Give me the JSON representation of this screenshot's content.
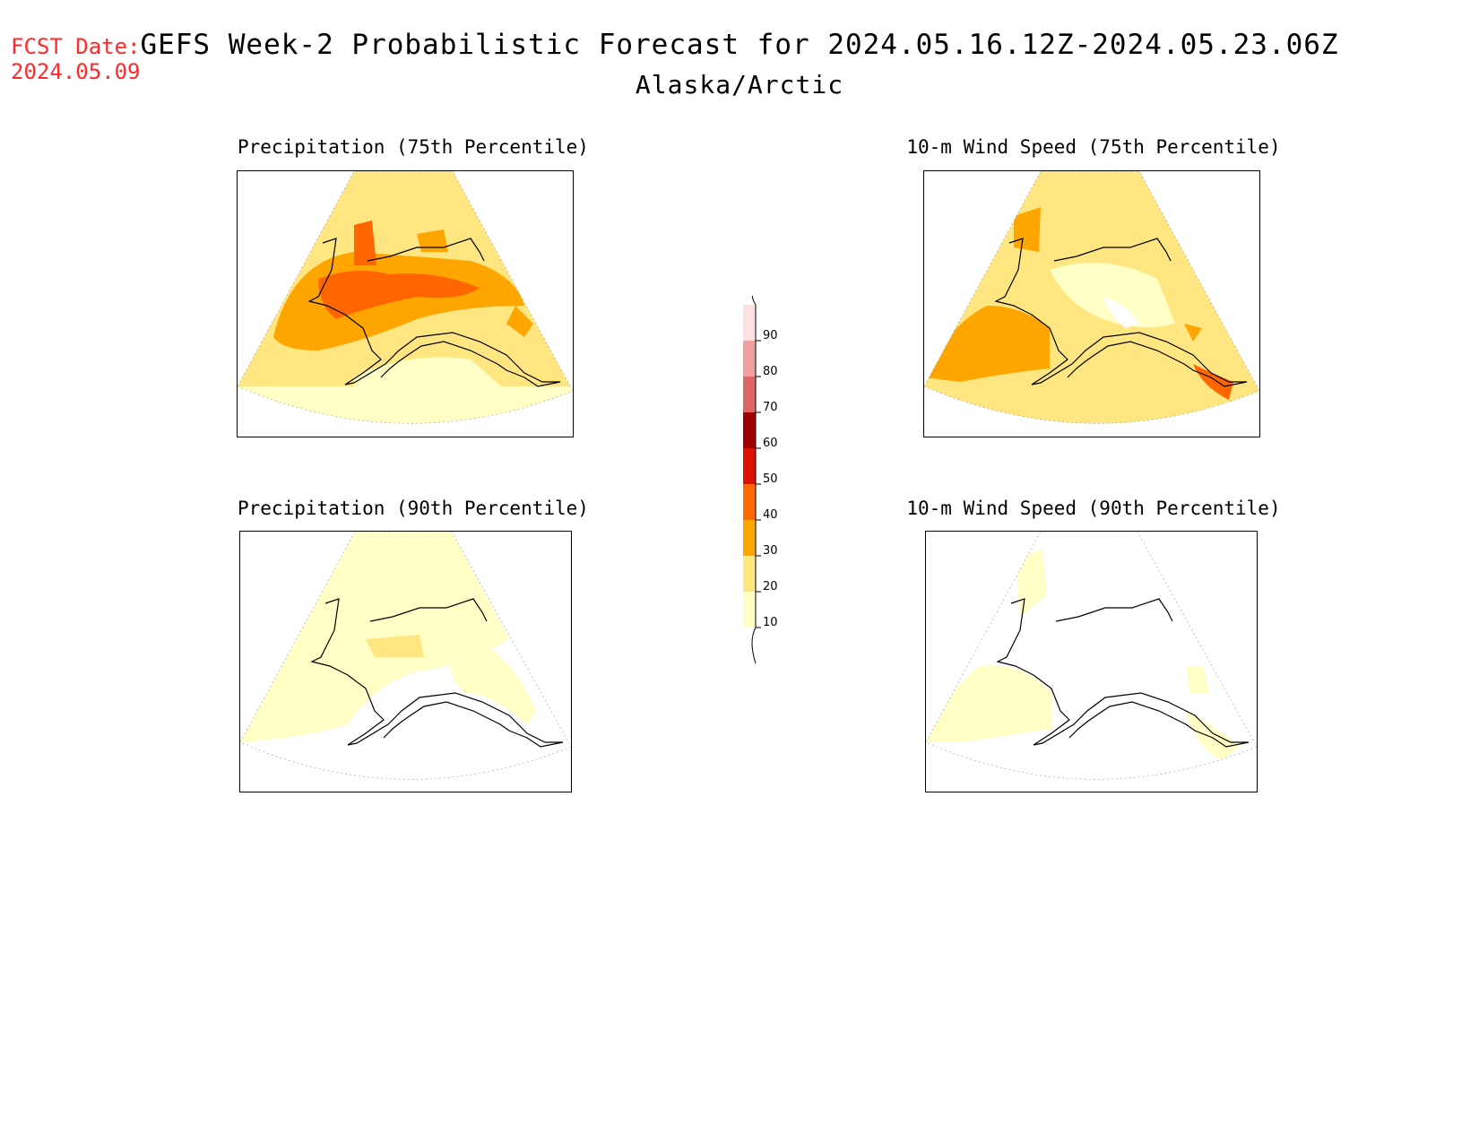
{
  "header": {
    "fcst_line1": "FCST Date:",
    "fcst_line2": "2024.05.09",
    "title": "GEFS Week-2 Probabilistic Forecast for 2024.05.16.12Z-2024.05.23.06Z",
    "region": "Alaska/Arctic"
  },
  "panels": [
    {
      "key": "precip75",
      "title": "Precipitation (75th Percentile)"
    },
    {
      "key": "wind75",
      "title": "10-m Wind Speed (75th Percentile)"
    },
    {
      "key": "precip90",
      "title": "Precipitation (90th Percentile)"
    },
    {
      "key": "wind90",
      "title": "10-m Wind Speed (90th Percentile)"
    }
  ],
  "colorbar": {
    "levels": [
      {
        "label": "10",
        "color": "#ffffc6"
      },
      {
        "label": "20",
        "color": "#ffe680"
      },
      {
        "label": "30",
        "color": "#ffa500"
      },
      {
        "label": "40",
        "color": "#ff6600"
      },
      {
        "label": "50",
        "color": "#dd1100"
      },
      {
        "label": "60",
        "color": "#a00000"
      },
      {
        "label": "70",
        "color": "#dd6666"
      },
      {
        "label": "80",
        "color": "#f0a0a0"
      },
      {
        "label": "90",
        "color": "#fde0e0"
      }
    ]
  }
}
